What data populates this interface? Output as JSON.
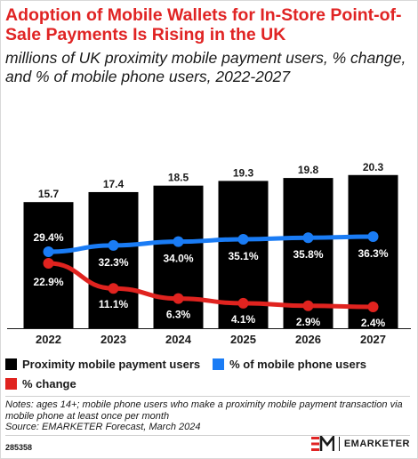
{
  "header": {
    "title": "Adoption of Mobile Wallets for In-Store Point-of-Sale Payments Is Rising in the UK",
    "subtitle": "millions of UK proximity mobile payment users, % change, and % of mobile phone users, 2022-2027"
  },
  "chart_data": {
    "type": "bar",
    "categories": [
      "2022",
      "2023",
      "2024",
      "2025",
      "2026",
      "2027"
    ],
    "series": [
      {
        "name": "Proximity mobile payment users",
        "type": "bar",
        "color": "#000000",
        "values": [
          15.7,
          17.4,
          18.5,
          19.3,
          19.8,
          20.3
        ],
        "labels": [
          "15.7",
          "17.4",
          "18.5",
          "19.3",
          "19.8",
          "20.3"
        ]
      },
      {
        "name": "% of mobile phone users",
        "type": "line",
        "color": "#1a7cf5",
        "values": [
          29.4,
          32.3,
          34.0,
          35.1,
          35.8,
          36.3
        ],
        "labels": [
          "29.4%",
          "32.3%",
          "34.0%",
          "35.1%",
          "35.8%",
          "36.3%"
        ]
      },
      {
        "name": "% change",
        "type": "line",
        "color": "#e0231f",
        "values": [
          22.9,
          11.1,
          6.3,
          4.1,
          2.9,
          2.4
        ],
        "labels": [
          "22.9%",
          "11.1%",
          "6.3%",
          "4.1%",
          "2.9%",
          "2.4%"
        ]
      }
    ],
    "grid": false,
    "legend_position": "bottom"
  },
  "legend": {
    "items": [
      {
        "label": "Proximity mobile payment users",
        "color": "#000000"
      },
      {
        "label": "% of mobile phone users",
        "color": "#1a7cf5"
      },
      {
        "label": "% change",
        "color": "#e0231f"
      }
    ]
  },
  "footer": {
    "notes": "Notes: ages 14+; mobile phone users who make a proximity mobile payment transaction via mobile phone at least once per month",
    "source": "Source: EMARKETER Forecast, March 2024",
    "chart_id": "285358",
    "brand": "EMARKETER"
  },
  "colors": {
    "title": "#e02424",
    "logo_red": "#e02424"
  }
}
